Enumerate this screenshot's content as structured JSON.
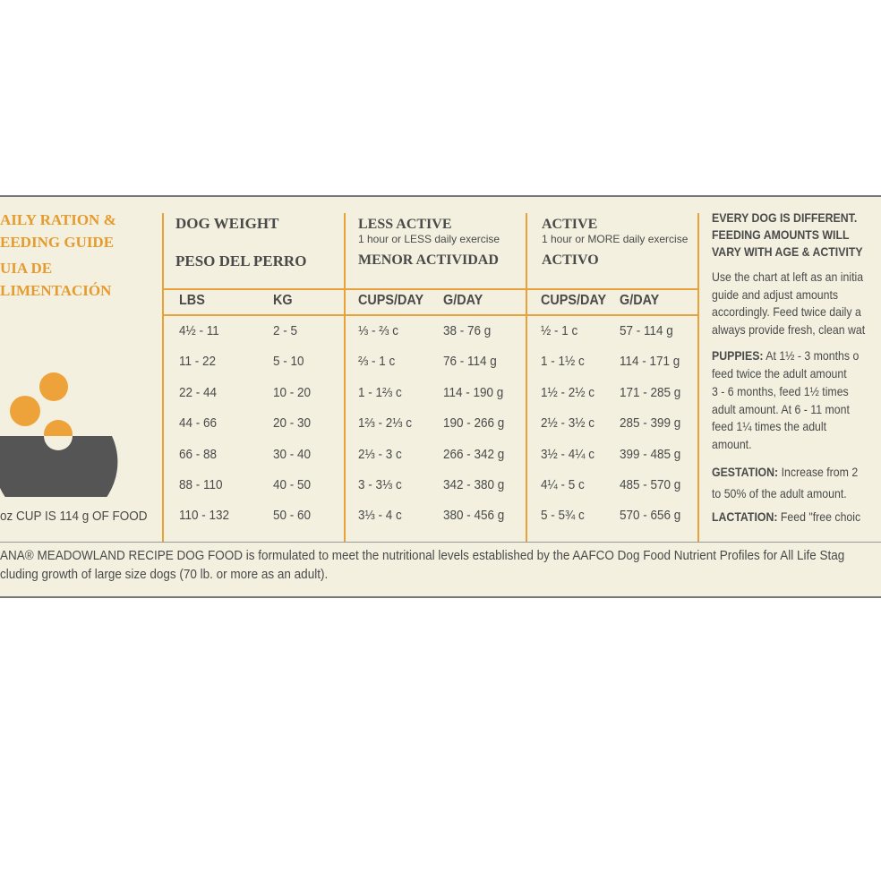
{
  "guide": {
    "title_lines": [
      "AILY RATION &",
      "EEDING GUIDE",
      "UIA DE",
      "LIMENTACIÓN"
    ],
    "cup_note": "oz CUP IS 114 g OF FOOD"
  },
  "columns": {
    "weight": {
      "title": "DOG WEIGHT",
      "title_es": "PESO DEL PERRO"
    },
    "less_active": {
      "title": "LESS ACTIVE",
      "subtitle": "1 hour or LESS daily exercise",
      "title_es": "MENOR ACTIVIDAD"
    },
    "active": {
      "title": "ACTIVE",
      "subtitle": "1 hour or MORE daily exercise",
      "title_es": "ACTIVO"
    }
  },
  "table": {
    "header": [
      "LBS",
      "KG",
      "CUPS/DAY",
      "G/DAY",
      "CUPS/DAY",
      "G/DAY"
    ],
    "rows": [
      [
        "4½ - 11",
        "2 - 5",
        "⅓ - ⅔ c",
        "38 - 76 g",
        "½ - 1 c",
        "57 - 114 g"
      ],
      [
        "11 - 22",
        "5 - 10",
        "⅔ - 1 c",
        "76 - 114 g",
        "1 - 1½ c",
        "114 - 171 g"
      ],
      [
        "22 - 44",
        "10 - 20",
        "1 - 1⅔ c",
        "114 - 190 g",
        "1½ - 2½ c",
        "171 - 285 g"
      ],
      [
        "44 - 66",
        "20 - 30",
        "1⅔ - 2⅓ c",
        "190 - 266 g",
        "2½ - 3½ c",
        "285 - 399 g"
      ],
      [
        "66 - 88",
        "30 - 40",
        "2⅓ - 3 c",
        "266 - 342 g",
        "3½ - 4¼ c",
        "399 - 485 g"
      ],
      [
        "88 - 110",
        "40 - 50",
        "3 - 3⅓ c",
        "342 - 380 g",
        "4¼ - 5 c",
        "485 - 570 g"
      ],
      [
        "110 - 132",
        "50 - 60",
        "3⅓ - 4 c",
        "380 - 456 g",
        "5 - 5¾ c",
        "570 - 656 g"
      ]
    ]
  },
  "notes": {
    "heading_lines": [
      "EVERY DOG IS DIFFERENT.",
      "FEEDING AMOUNTS WILL",
      "VARY WITH AGE & ACTIVITY"
    ],
    "intro_lines": [
      "Use the chart at left as an initia",
      "guide and adjust amounts",
      "accordingly. Feed twice daily a",
      "always provide fresh, clean wat"
    ],
    "puppies_label": "PUPPIES:",
    "puppies_lines": [
      " At 1½ - 3 months o",
      "feed twice the adult amount",
      "3 - 6 months, feed 1½ times",
      "adult amount. At 6 - 11 mont",
      "feed 1¼ times the adult",
      "amount."
    ],
    "gestation_label": "GESTATION:",
    "gestation_lines": [
      " Increase from 2",
      "to 50% of the adult amount."
    ],
    "lactation_label": "LACTATION:",
    "lactation_text": " Feed \"free choic"
  },
  "footer": {
    "lines": [
      "ANA® MEADOWLAND RECIPE DOG FOOD is formulated to meet the nutritional levels established by the AAFCO Dog Food Nutrient Profiles for All Life Stag",
      "cluding growth of large size dogs (70 lb. or more as an adult)."
    ]
  }
}
